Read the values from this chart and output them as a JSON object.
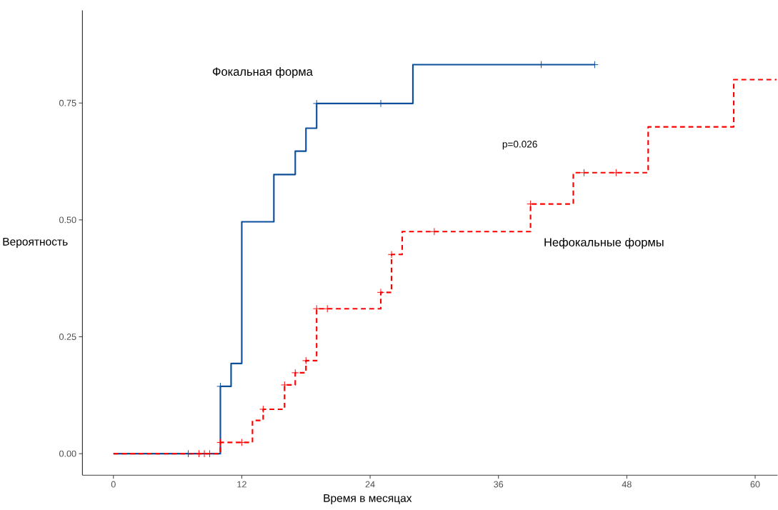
{
  "chart_data": {
    "type": "step",
    "xlabel": "Время в месяцах",
    "ylabel": "Вероятность",
    "xlim": [
      -2.9,
      62.1
    ],
    "ylim": [
      -0.046,
      0.948
    ],
    "xticks": [
      0,
      12,
      24,
      36,
      48,
      60
    ],
    "yticks": [
      {
        "value": 0,
        "label": "0.00"
      },
      {
        "value": 0.25,
        "label": "0.25"
      },
      {
        "value": 0.5,
        "label": "0.50"
      },
      {
        "value": 0.75,
        "label": "0.75"
      }
    ],
    "grid": false,
    "annotations": [
      "p=0.026"
    ],
    "series": [
      {
        "name": "Фокальная форма",
        "color": "#0d4f9c",
        "line_style": "solid",
        "marker": "none",
        "x": [
          0,
          10,
          11,
          12,
          15,
          17,
          18,
          19,
          28,
          45
        ],
        "values": [
          0,
          0.144,
          0.193,
          0.496,
          0.597,
          0.647,
          0.696,
          0.749,
          0.832,
          0.832
        ]
      },
      {
        "name": "Нефокальные формы",
        "color": "#ff0000",
        "line_style": "dashed",
        "marker": "none",
        "x": [
          0,
          10,
          13,
          14,
          16,
          17,
          18,
          19,
          25,
          26,
          27,
          39,
          43,
          50,
          58,
          62
        ],
        "values": [
          0,
          0.024,
          0.071,
          0.095,
          0.147,
          0.173,
          0.199,
          0.31,
          0.345,
          0.426,
          0.475,
          0.534,
          0.601,
          0.699,
          0.8,
          0.8
        ]
      },
      {
        "type": "scatter",
        "color": "#0d4f9c",
        "marker": "cross",
        "x": [
          7,
          10,
          19,
          25,
          40,
          45
        ],
        "values": [
          0,
          0.144,
          0.749,
          0.749,
          0.832,
          0.832
        ]
      },
      {
        "type": "scatter",
        "color": "#ff0000",
        "marker": "cross",
        "x": [
          8,
          8.5,
          9,
          10,
          12,
          14,
          16,
          17,
          18,
          19,
          20,
          25,
          26,
          30,
          39,
          44,
          47
        ],
        "values": [
          0,
          0,
          0,
          0.024,
          0.024,
          0.095,
          0.147,
          0.173,
          0.199,
          0.31,
          0.31,
          0.345,
          0.426,
          0.475,
          0.534,
          0.601,
          0.601
        ]
      }
    ]
  }
}
